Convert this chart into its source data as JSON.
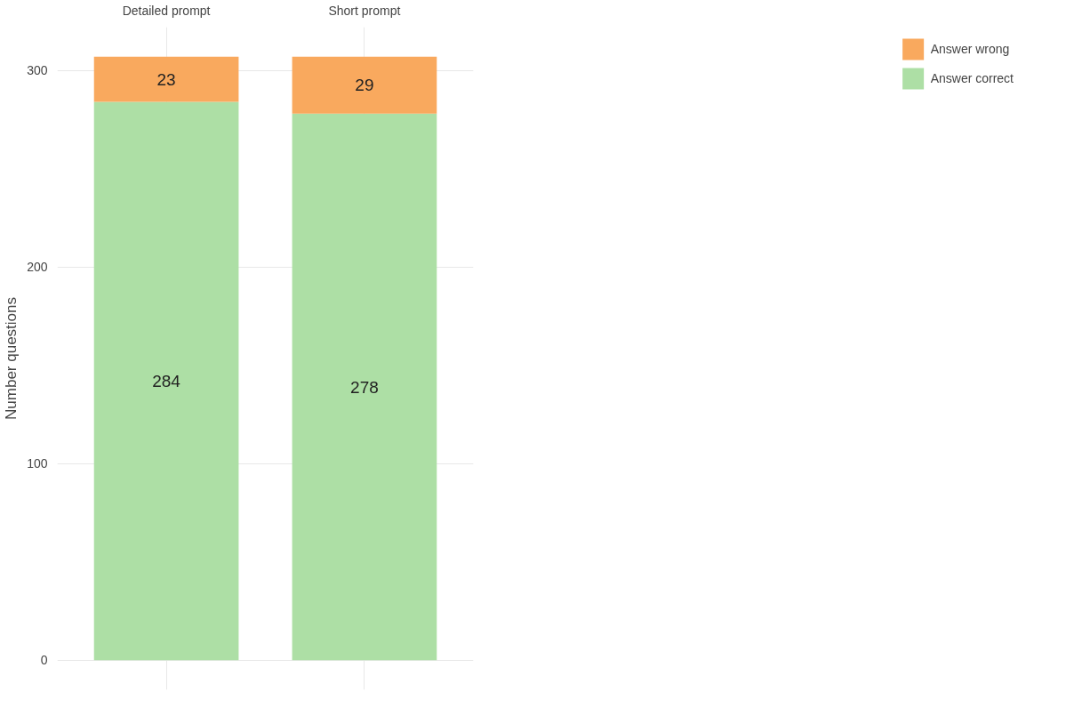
{
  "chart_data": {
    "type": "bar",
    "stacked": true,
    "categories": [
      "Detailed prompt",
      "Short prompt"
    ],
    "series": [
      {
        "name": "Answer correct",
        "color": "#addfa5",
        "values": [
          284,
          278
        ]
      },
      {
        "name": "Answer wrong",
        "color": "#f9a95e",
        "values": [
          23,
          29
        ]
      }
    ],
    "ylabel": "Number questions",
    "ylim": [
      -15,
      322
    ],
    "yticks": [
      0,
      100,
      200,
      300
    ],
    "grid": true,
    "legend": "right",
    "data_labels": true
  }
}
